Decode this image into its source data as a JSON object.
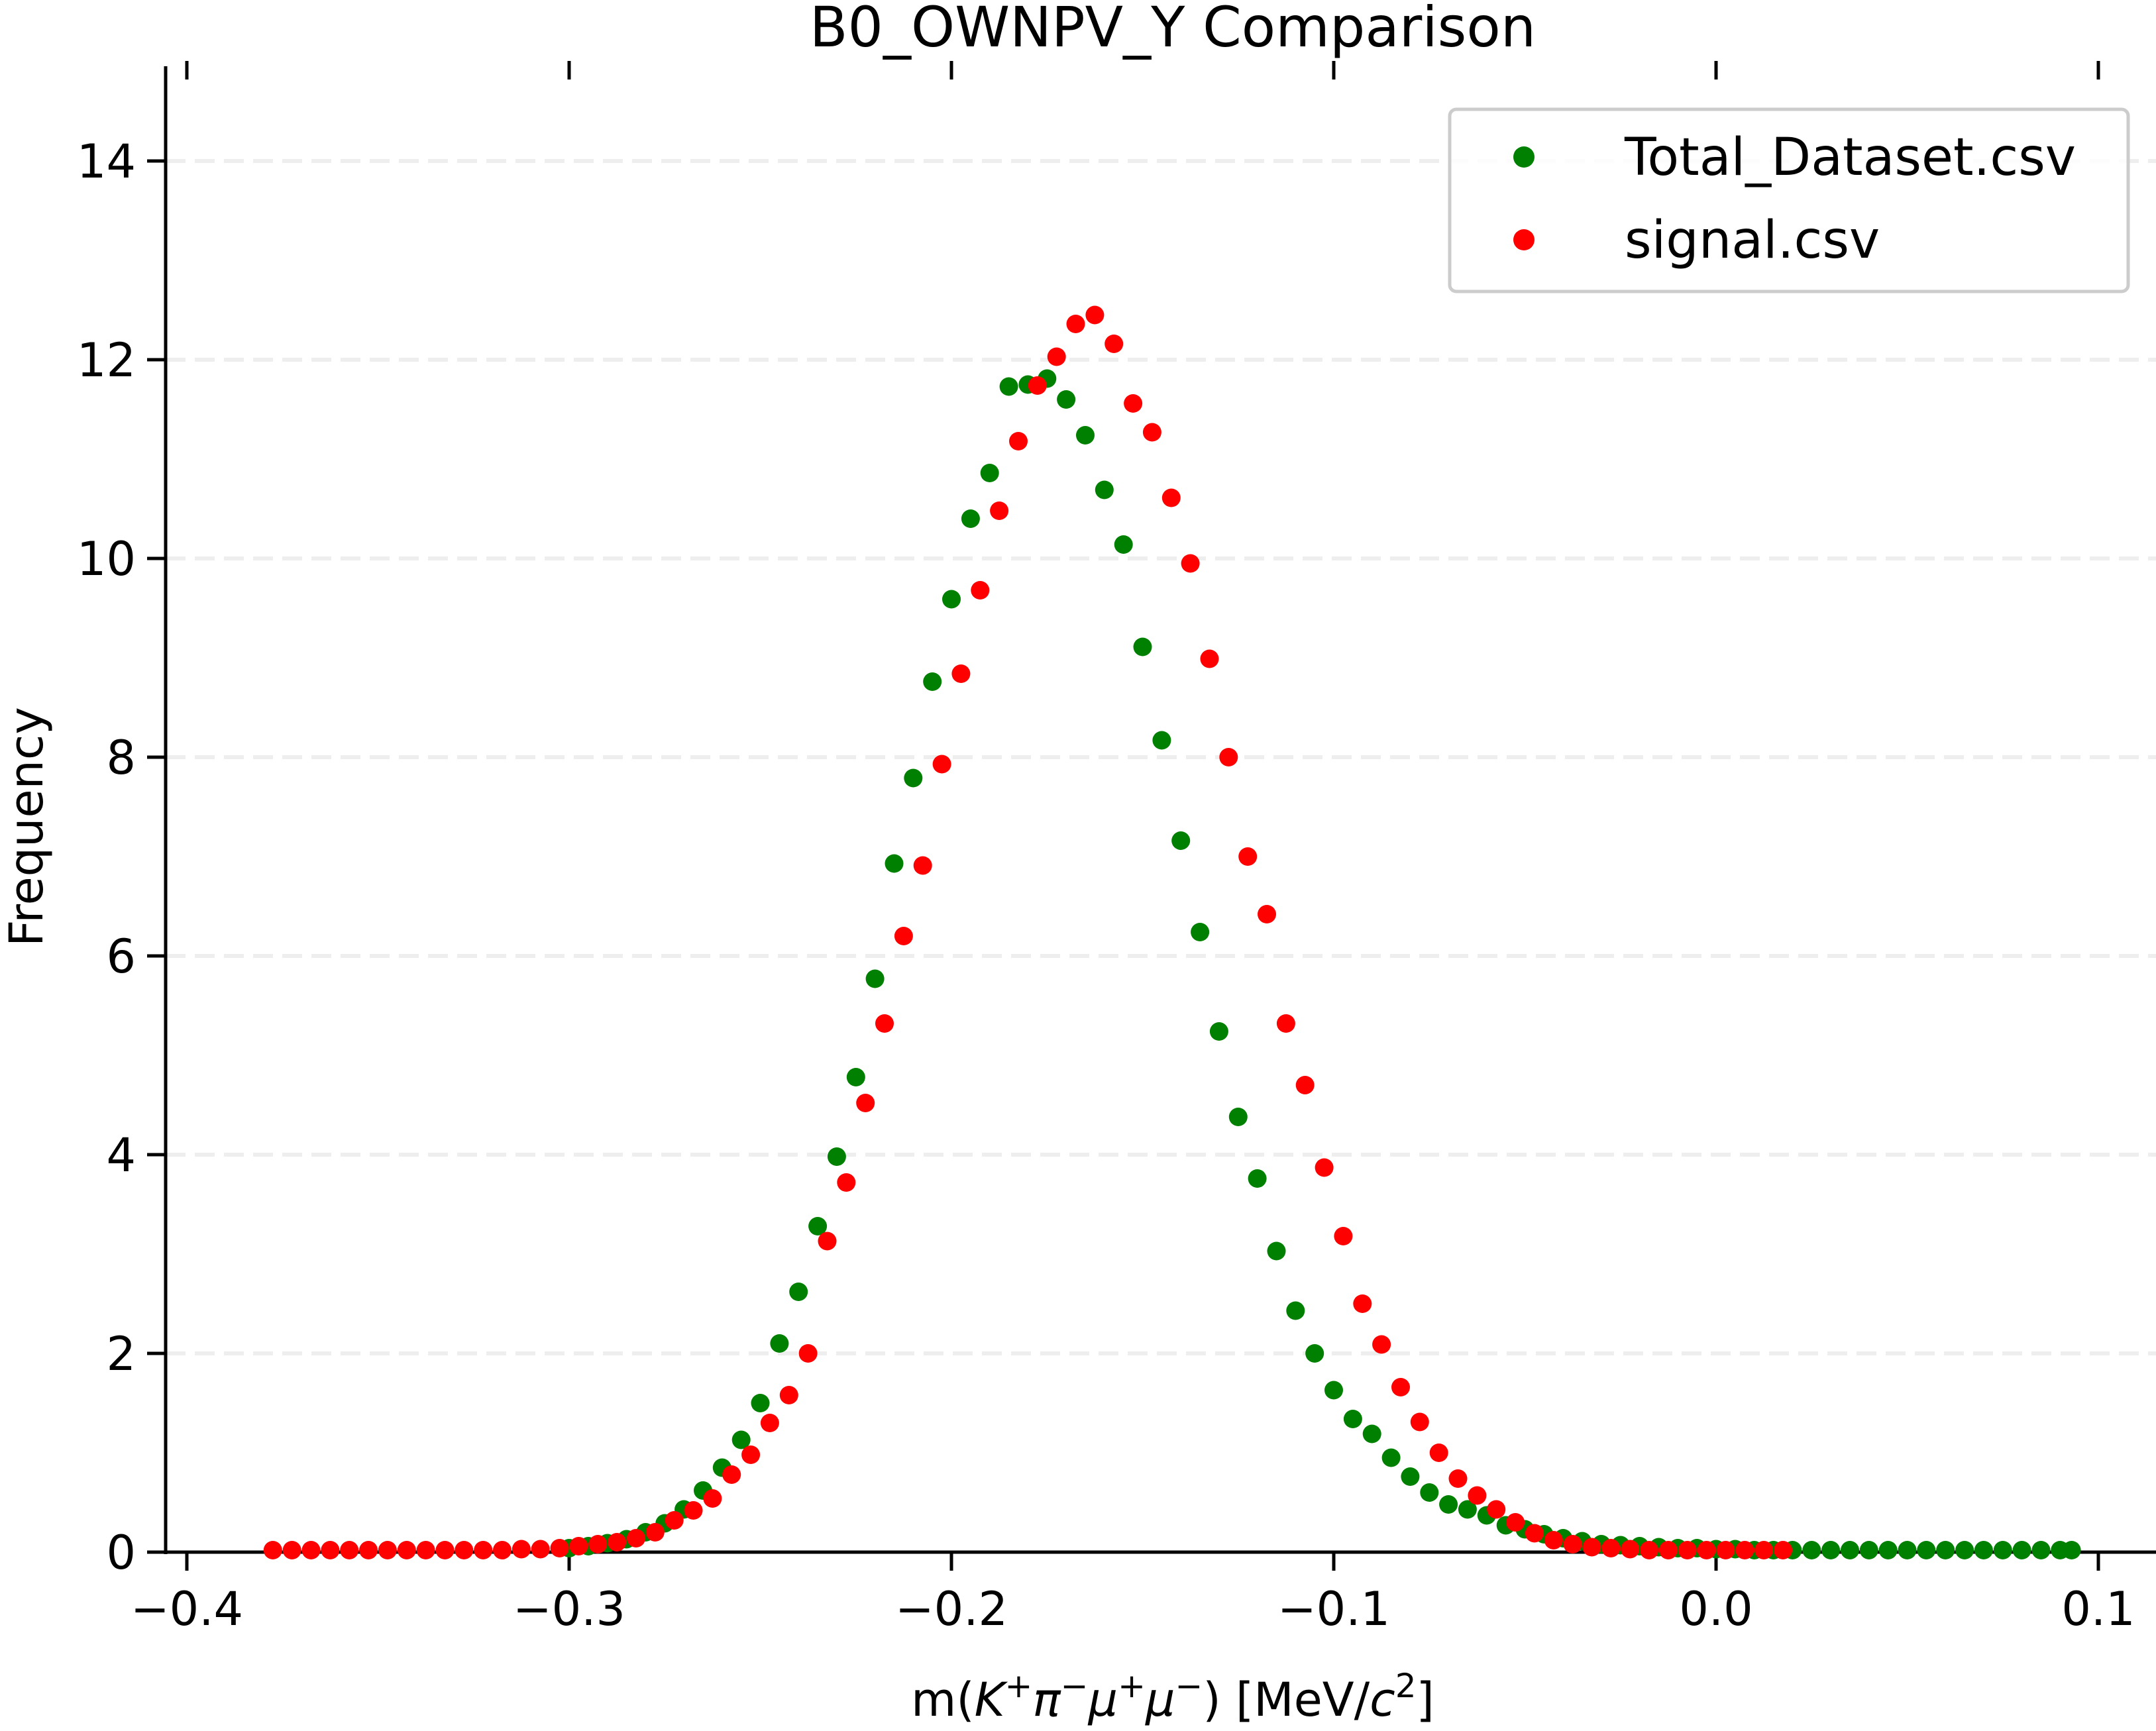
{
  "chart_data": {
    "type": "scatter",
    "title": "B0_OWNPV_Y Comparison",
    "xlabel_parts": [
      "m(",
      "K",
      "+",
      "π",
      "−",
      "μ",
      "+",
      "μ",
      "−",
      ") [MeV/",
      "c",
      "2",
      "]"
    ],
    "ylabel": "Frequency",
    "xlim": [
      -0.4,
      0.1
    ],
    "ylim": [
      0,
      14
    ],
    "x_ticks": [
      -0.4,
      -0.3,
      -0.2,
      -0.1,
      0.0,
      0.1
    ],
    "x_tick_labels": [
      "−0.4",
      "−0.3",
      "−0.2",
      "−0.1",
      "0.0",
      "0.1"
    ],
    "y_ticks": [
      0,
      2,
      4,
      6,
      8,
      10,
      12,
      14
    ],
    "y_tick_labels": [
      "0",
      "2",
      "4",
      "6",
      "8",
      "10",
      "12",
      "14"
    ],
    "grid": "horizontal dashed",
    "legend_position": "top-right",
    "series": [
      {
        "name": "Total_Dataset.csv",
        "color": "#008000",
        "x": [
          -0.3,
          -0.295,
          -0.29,
          -0.285,
          -0.28,
          -0.275,
          -0.27,
          -0.265,
          -0.26,
          -0.255,
          -0.25,
          -0.245,
          -0.24,
          -0.235,
          -0.23,
          -0.225,
          -0.22,
          -0.215,
          -0.21,
          -0.205,
          -0.2,
          -0.195,
          -0.19,
          -0.185,
          -0.18,
          -0.175,
          -0.17,
          -0.165,
          -0.16,
          -0.155,
          -0.15,
          -0.145,
          -0.14,
          -0.135,
          -0.13,
          -0.125,
          -0.12,
          -0.115,
          -0.11,
          -0.105,
          -0.1,
          -0.095,
          -0.09,
          -0.085,
          -0.08,
          -0.075,
          -0.07,
          -0.065,
          -0.06,
          -0.055,
          -0.05,
          -0.045,
          -0.04,
          -0.035,
          -0.03,
          -0.025,
          -0.02,
          -0.015,
          -0.01,
          -0.005,
          0.0,
          0.005,
          0.01,
          0.015,
          0.02,
          0.025,
          0.03,
          0.035,
          0.04,
          0.045,
          0.05,
          0.055,
          0.06,
          0.065,
          0.07,
          0.075,
          0.08,
          0.085,
          0.09,
          0.093
        ],
        "y": [
          0.04,
          0.06,
          0.09,
          0.13,
          0.2,
          0.29,
          0.43,
          0.62,
          0.85,
          1.13,
          1.5,
          2.1,
          2.62,
          3.28,
          3.98,
          4.78,
          5.77,
          6.93,
          7.79,
          8.76,
          9.59,
          10.4,
          10.86,
          11.73,
          11.75,
          11.81,
          11.6,
          11.24,
          10.69,
          10.14,
          9.11,
          8.17,
          7.16,
          6.24,
          5.24,
          4.38,
          3.76,
          3.03,
          2.43,
          2.0,
          1.63,
          1.34,
          1.19,
          0.95,
          0.76,
          0.6,
          0.48,
          0.43,
          0.37,
          0.27,
          0.23,
          0.18,
          0.14,
          0.11,
          0.08,
          0.07,
          0.06,
          0.05,
          0.04,
          0.04,
          0.03,
          0.03,
          0.02,
          0.02,
          0.02,
          0.02,
          0.02,
          0.02,
          0.02,
          0.02,
          0.02,
          0.02,
          0.02,
          0.02,
          0.02,
          0.02,
          0.02,
          0.02,
          0.02,
          0.02
        ]
      },
      {
        "name": "signal.csv",
        "color": "#ff0000",
        "x": [
          -0.3775,
          -0.3725,
          -0.3675,
          -0.3625,
          -0.3575,
          -0.3525,
          -0.3475,
          -0.3425,
          -0.3375,
          -0.3325,
          -0.3275,
          -0.3225,
          -0.3175,
          -0.3125,
          -0.3075,
          -0.3025,
          -0.2975,
          -0.2925,
          -0.2875,
          -0.2825,
          -0.2775,
          -0.2725,
          -0.2675,
          -0.2625,
          -0.2575,
          -0.2525,
          -0.2475,
          -0.2425,
          -0.2375,
          -0.2325,
          -0.2275,
          -0.2225,
          -0.2175,
          -0.2125,
          -0.2075,
          -0.2025,
          -0.1975,
          -0.1925,
          -0.1875,
          -0.1825,
          -0.1775,
          -0.1725,
          -0.1675,
          -0.1625,
          -0.1575,
          -0.1525,
          -0.1475,
          -0.1425,
          -0.1375,
          -0.1325,
          -0.1275,
          -0.1225,
          -0.1175,
          -0.1125,
          -0.1075,
          -0.1025,
          -0.0975,
          -0.0925,
          -0.0875,
          -0.0825,
          -0.0775,
          -0.0725,
          -0.0675,
          -0.0625,
          -0.0575,
          -0.0525,
          -0.0475,
          -0.0425,
          -0.0375,
          -0.0325,
          -0.0275,
          -0.0225,
          -0.0175,
          -0.0125,
          -0.0075,
          -0.0025,
          0.0025,
          0.0075,
          0.0125,
          0.0175
        ],
        "y": [
          0.02,
          0.02,
          0.02,
          0.02,
          0.02,
          0.02,
          0.02,
          0.02,
          0.02,
          0.02,
          0.02,
          0.02,
          0.02,
          0.03,
          0.03,
          0.04,
          0.06,
          0.08,
          0.1,
          0.14,
          0.2,
          0.32,
          0.42,
          0.54,
          0.78,
          0.98,
          1.3,
          1.58,
          2.0,
          3.13,
          3.72,
          4.52,
          5.32,
          6.2,
          6.91,
          7.93,
          8.84,
          9.68,
          10.48,
          11.18,
          11.74,
          12.03,
          12.36,
          12.45,
          12.16,
          11.56,
          11.27,
          10.61,
          9.95,
          8.99,
          8.0,
          7.0,
          6.42,
          5.32,
          4.7,
          3.87,
          3.18,
          2.5,
          2.09,
          1.66,
          1.31,
          1.0,
          0.74,
          0.57,
          0.43,
          0.3,
          0.19,
          0.12,
          0.08,
          0.05,
          0.04,
          0.03,
          0.02,
          0.02,
          0.02,
          0.02,
          0.02,
          0.02,
          0.02,
          0.02
        ]
      }
    ]
  }
}
